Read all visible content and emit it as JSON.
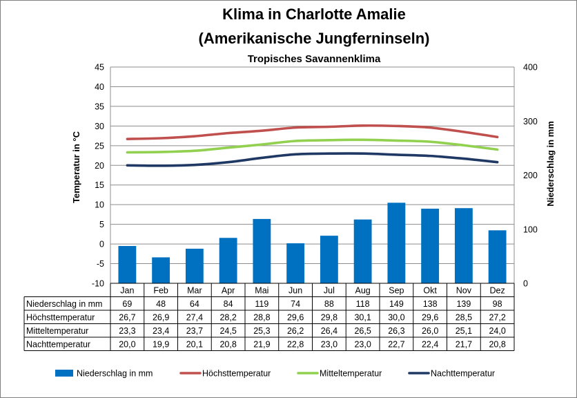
{
  "chart_data": {
    "type": "bar+line",
    "title": "Klima in Charlotte Amalie",
    "title_line2": "(Amerikanische Jungferninseln)",
    "subtitle": "Tropisches Savannenklima",
    "ylabel_left": "Temperatur in °C",
    "ylabel_right": "Niederschlag in mm",
    "ylim_left": [
      -10,
      45
    ],
    "yticks_left": [
      -10,
      -5,
      0,
      5,
      10,
      15,
      20,
      25,
      30,
      35,
      40,
      45
    ],
    "ylim_right": [
      0,
      400
    ],
    "yticks_right": [
      0,
      100,
      200,
      300,
      400
    ],
    "grid": true,
    "legend_position": "bottom",
    "categories": [
      "Jan",
      "Feb",
      "Mar",
      "Apr",
      "Mai",
      "Jun",
      "Jul",
      "Aug",
      "Sep",
      "Okt",
      "Nov",
      "Dez"
    ],
    "series": [
      {
        "name": "Niederschlag in mm",
        "type": "bar",
        "axis": "right",
        "color": "#0070c0",
        "values": [
          69,
          48,
          64,
          84,
          119,
          74,
          88,
          118,
          149,
          138,
          139,
          98
        ],
        "labels": [
          "69",
          "48",
          "64",
          "84",
          "119",
          "74",
          "88",
          "118",
          "149",
          "138",
          "139",
          "98"
        ]
      },
      {
        "name": "Höchsttemperatur",
        "type": "line",
        "axis": "left",
        "color": "#c0504d",
        "values": [
          26.7,
          26.9,
          27.4,
          28.2,
          28.8,
          29.6,
          29.8,
          30.1,
          30.0,
          29.6,
          28.5,
          27.2
        ],
        "labels": [
          "26,7",
          "26,9",
          "27,4",
          "28,2",
          "28,8",
          "29,6",
          "29,8",
          "30,1",
          "30,0",
          "29,6",
          "28,5",
          "27,2"
        ]
      },
      {
        "name": "Mitteltemperatur",
        "type": "line",
        "axis": "left",
        "color": "#92d050",
        "values": [
          23.3,
          23.4,
          23.7,
          24.5,
          25.3,
          26.2,
          26.4,
          26.5,
          26.3,
          26.0,
          25.1,
          24.0
        ],
        "labels": [
          "23,3",
          "23,4",
          "23,7",
          "24,5",
          "25,3",
          "26,2",
          "26,4",
          "26,5",
          "26,3",
          "26,0",
          "25,1",
          "24,0"
        ]
      },
      {
        "name": "Nachttemperatur",
        "type": "line",
        "axis": "left",
        "color": "#1f3864",
        "values": [
          20.0,
          19.9,
          20.1,
          20.8,
          21.9,
          22.8,
          23.0,
          23.0,
          22.7,
          22.4,
          21.7,
          20.8
        ],
        "labels": [
          "20,0",
          "19,9",
          "20,1",
          "20,8",
          "21,9",
          "22,8",
          "23,0",
          "23,0",
          "22,7",
          "22,4",
          "21,7",
          "20,8"
        ]
      }
    ]
  }
}
